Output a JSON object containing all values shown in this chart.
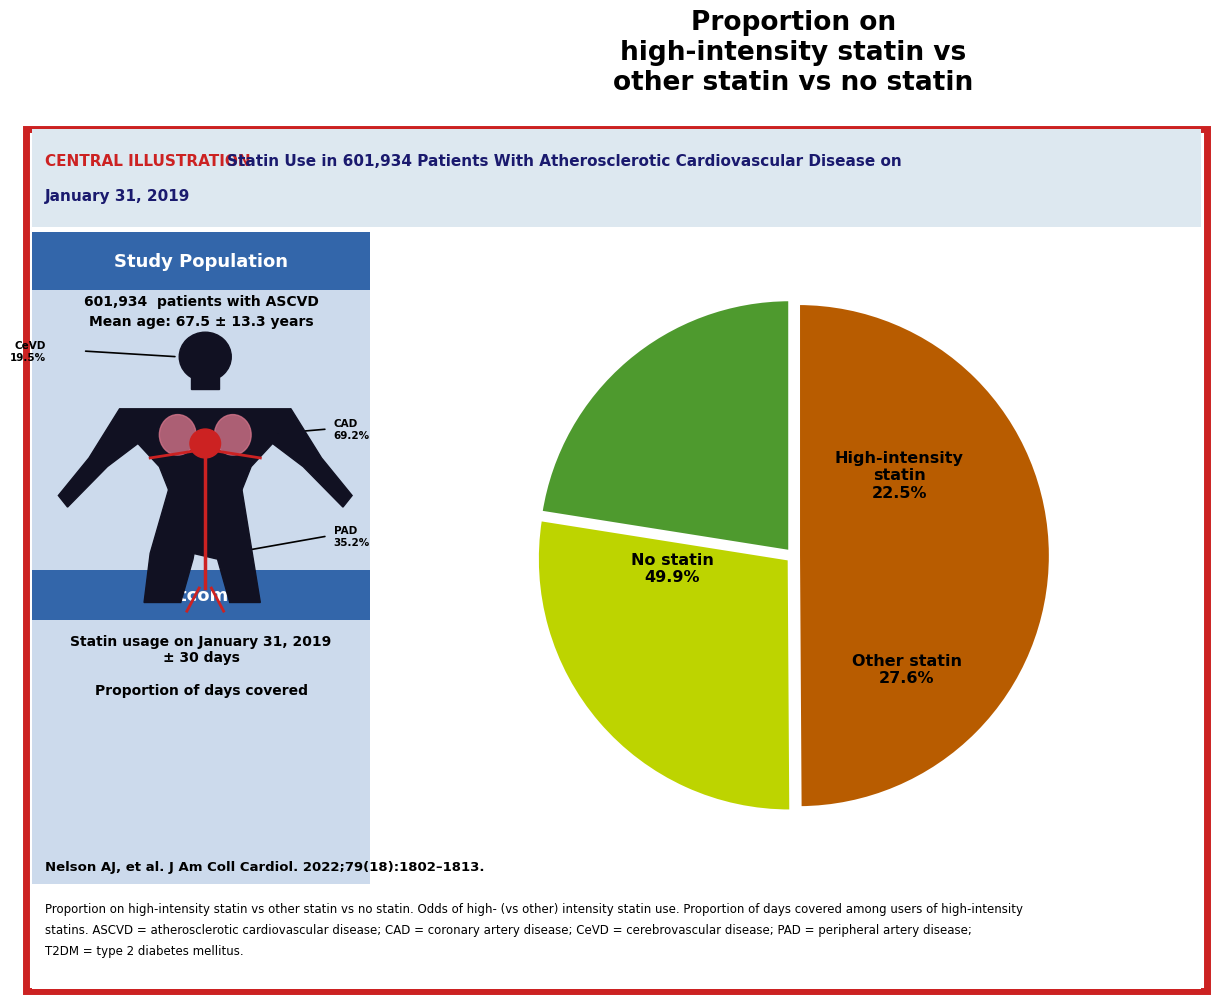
{
  "title_bold": "CENTRAL ILLUSTRATION",
  "title_normal": " Statin Use in 601,934 Patients With Atherosclerotic Cardiovascular Disease on January 31, 2019",
  "border_color": "#CC2222",
  "header_bg": "#dde8f0",
  "blue_banner_color": "#3366AA",
  "light_blue_bg": "#ccdaec",
  "study_population_title": "Study Population",
  "study_pop_text1": "601,934  patients with ASCVD",
  "study_pop_text2": "Mean age: 67.5 ± 13.3 years",
  "cevd_label": "CeVD\n19.5%",
  "cad_label": "CAD\n69.2%",
  "pad_label": "PAD\n35.2%",
  "outcomes_title": "Outcomes",
  "outcomes_text1": "Statin usage on January 31, 2019\n± 30 days",
  "outcomes_text2": "Proportion of days covered",
  "citation": "Nelson AJ, et al. J Am Coll Cardiol. 2022;79(18):1802–1813.",
  "footnote_line1": "Proportion on high-intensity statin vs other statin vs no statin. Odds of high- (vs other) intensity statin use. Proportion of days covered among users of high-intensity",
  "footnote_line2": "statins. ASCVD = atherosclerotic cardiovascular disease; CAD = coronary artery disease; CeVD = cerebrovascular disease; PAD = peripheral artery disease;",
  "footnote_line3": "T2DM = type 2 diabetes mellitus.",
  "pie_title": "Proportion on\nhigh-intensity statin vs\nother statin vs no statin",
  "pie_labels": [
    "High-intensity\nstatin\n22.5%",
    "Other statin\n27.6%",
    "No statin\n49.9%"
  ],
  "pie_values": [
    22.5,
    27.6,
    49.9
  ],
  "pie_colors": [
    "#4e9a2e",
    "#bdd400",
    "#b85c00"
  ],
  "pie_startangle": 90,
  "pie_explode": [
    0.02,
    0.02,
    0.02
  ]
}
